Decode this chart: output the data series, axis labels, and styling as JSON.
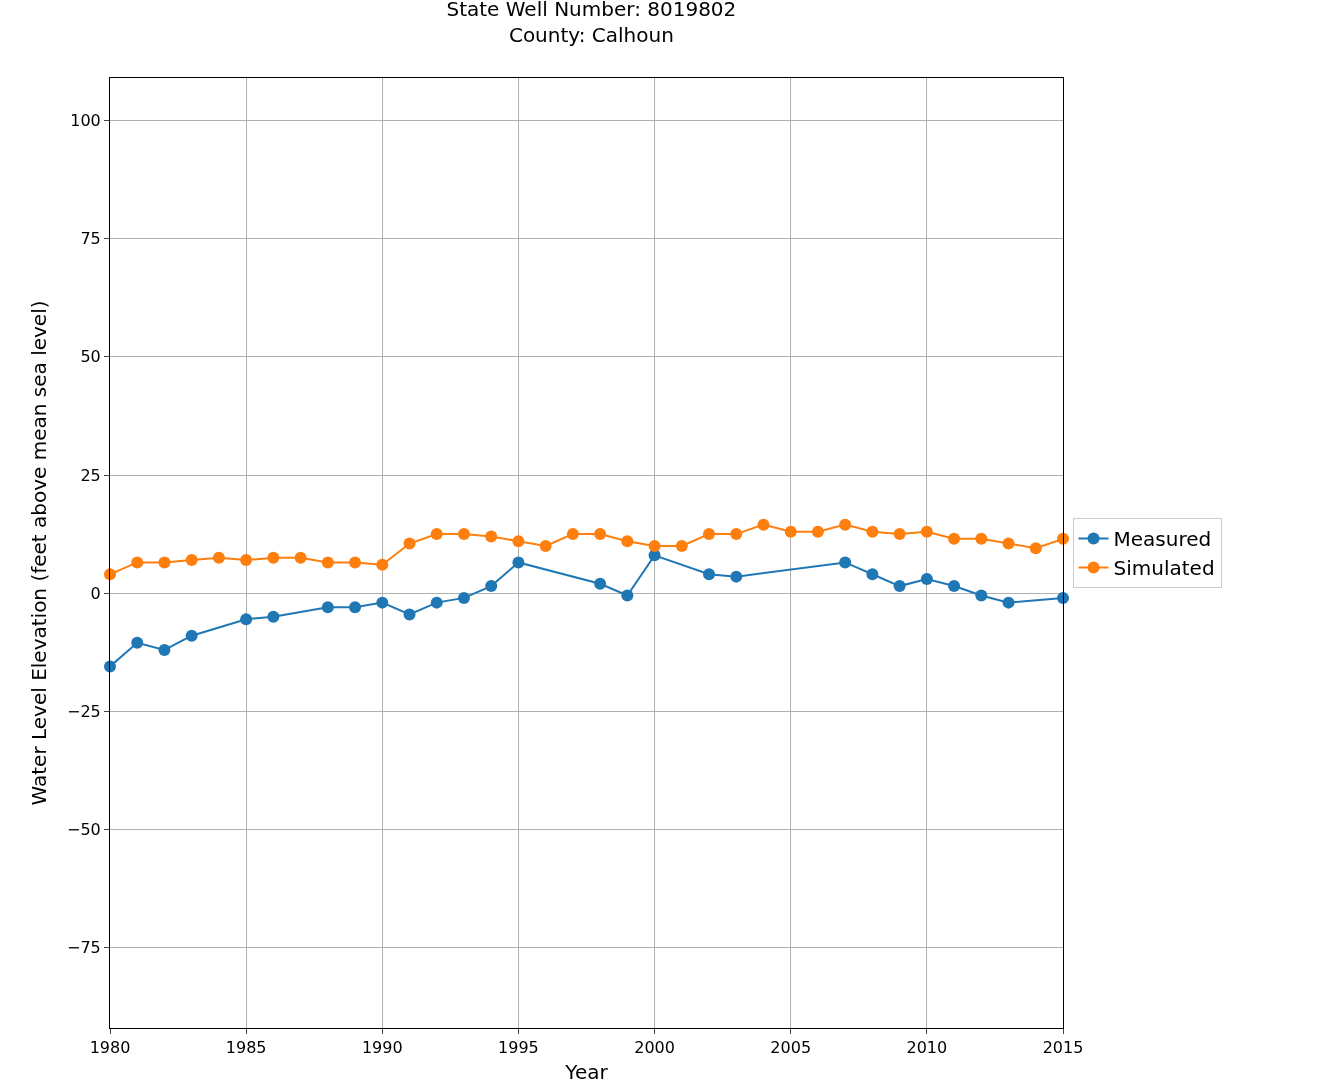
{
  "chart_data": {
    "type": "line",
    "title": "State Well Number: 8019802\nCounty: Calhoun",
    "xlabel": "Year",
    "ylabel": "Water Level Elevation (feet above mean sea level)",
    "xlim": [
      1980,
      2015
    ],
    "xticks": [
      1980,
      1985,
      1990,
      1995,
      2000,
      2005,
      2010,
      2015
    ],
    "ylim": [
      -92,
      109
    ],
    "yticks": [
      {
        "value": -75,
        "label": "−75"
      },
      {
        "value": -50,
        "label": "−50"
      },
      {
        "value": -25,
        "label": "−25"
      },
      0,
      25,
      50,
      75,
      100
    ],
    "grid": true,
    "legend": "right",
    "marker": "circle",
    "line_style": "solid",
    "series": [
      {
        "name": "Measured",
        "color": "#1f77b4",
        "x": [
          1980,
          1981,
          1982,
          1983,
          1985,
          1986,
          1988,
          1989,
          1990,
          1991,
          1992,
          1993,
          1994,
          1995,
          1998,
          1999,
          2000,
          2002,
          2003,
          2007,
          2008,
          2009,
          2010,
          2011,
          2012,
          2013,
          2015
        ],
        "values": [
          -15.5,
          -10.5,
          -12,
          -9,
          -5.5,
          -5,
          -3,
          -3,
          -2,
          -4.5,
          -2,
          -1,
          1.5,
          6.5,
          2,
          -0.5,
          8,
          4,
          3.5,
          6.5,
          4,
          1.5,
          3,
          1.5,
          -0.5,
          -2,
          -1
        ]
      },
      {
        "name": "Simulated",
        "color": "#ff7f0e",
        "x": [
          1980,
          1981,
          1982,
          1983,
          1984,
          1985,
          1986,
          1987,
          1988,
          1989,
          1990,
          1991,
          1992,
          1993,
          1994,
          1995,
          1996,
          1997,
          1998,
          1999,
          2000,
          2001,
          2002,
          2003,
          2004,
          2005,
          2006,
          2007,
          2008,
          2009,
          2010,
          2011,
          2012,
          2013,
          2014,
          2015
        ],
        "values": [
          4,
          6.5,
          6.5,
          7,
          7.5,
          7,
          7.5,
          7.5,
          6.5,
          6.5,
          6,
          10.5,
          12.5,
          12.5,
          12,
          11,
          10,
          12.5,
          12.5,
          11,
          10,
          10,
          12.5,
          12.5,
          14.5,
          13,
          13,
          14.5,
          13,
          12.5,
          13,
          11.5,
          11.5,
          10.5,
          9.5,
          11.5
        ]
      }
    ]
  }
}
